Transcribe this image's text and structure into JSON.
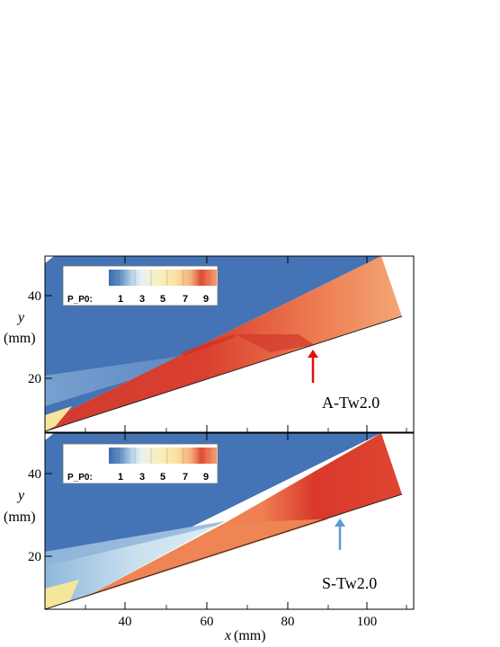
{
  "axes": {
    "x_title_var": "x",
    "x_title_unit": "(mm)",
    "y_title_var": "y",
    "y_title_unit": "(mm)",
    "x_ticks": [
      "40",
      "60",
      "80",
      "100"
    ],
    "y_ticks": [
      "40",
      "20"
    ]
  },
  "legend": {
    "title": "P_P0:",
    "ticks": [
      "1",
      "3",
      "5",
      "7",
      "9"
    ]
  },
  "panels": [
    {
      "label": "A-Tw2.0",
      "arrow_color": "#e01010"
    },
    {
      "label": "S-Tw2.0",
      "arrow_color": "#5b9bd5"
    }
  ],
  "colors": {
    "background_field": "#4474b6",
    "post_shock_high": "#ee8252",
    "post_shock_peak": "#d9382c",
    "low_pressure_light": "#cfe3ef",
    "yellow_zone": "#f5e69c"
  }
}
